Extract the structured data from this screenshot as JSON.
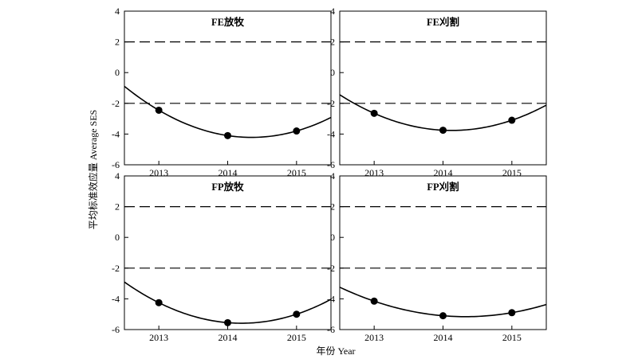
{
  "figure": {
    "xlabel": "年份 Year",
    "ylabel": "平均标准效应量 Average SES"
  },
  "chart_data": [
    {
      "type": "scatter",
      "title": "FE放牧",
      "x": [
        2013,
        2014,
        2015
      ],
      "y": [
        -2.45,
        -4.1,
        -3.8
      ],
      "xticks": [
        "2013",
        "2014",
        "2015"
      ],
      "yticks": [
        "4",
        "2",
        "0",
        "-2",
        "-4",
        "-6"
      ],
      "xlim": [
        2012.5,
        2015.5
      ],
      "ylim": [
        -6,
        4
      ],
      "reference_lines": [
        2,
        -2
      ],
      "fit": "quadratic"
    },
    {
      "type": "scatter",
      "title": "FE刈割",
      "x": [
        2013,
        2014,
        2015
      ],
      "y": [
        -2.65,
        -3.75,
        -3.1
      ],
      "xticks": [
        "2013",
        "2014",
        "2015"
      ],
      "yticks": [
        "4",
        "2",
        "0",
        "-2",
        "-4",
        "-6"
      ],
      "xlim": [
        2012.5,
        2015.5
      ],
      "ylim": [
        -6,
        4
      ],
      "reference_lines": [
        2,
        -2
      ],
      "fit": "quadratic"
    },
    {
      "type": "scatter",
      "title": "FP放牧",
      "x": [
        2013,
        2014,
        2015
      ],
      "y": [
        -4.25,
        -5.55,
        -5.0
      ],
      "xticks": [
        "2013",
        "2014",
        "2015"
      ],
      "yticks": [
        "4",
        "2",
        "0",
        "-2",
        "-4",
        "-6"
      ],
      "xlim": [
        2012.5,
        2015.5
      ],
      "ylim": [
        -6,
        4
      ],
      "reference_lines": [
        2,
        -2
      ],
      "fit": "quadratic"
    },
    {
      "type": "scatter",
      "title": "FP刈割",
      "x": [
        2013,
        2014,
        2015
      ],
      "y": [
        -4.15,
        -5.1,
        -4.9
      ],
      "xticks": [
        "2013",
        "2014",
        "2015"
      ],
      "yticks": [
        "4",
        "2",
        "0",
        "-2",
        "-4",
        "-6"
      ],
      "xlim": [
        2012.5,
        2015.5
      ],
      "ylim": [
        -6,
        4
      ],
      "reference_lines": [
        2,
        -2
      ],
      "fit": "quadratic"
    }
  ]
}
